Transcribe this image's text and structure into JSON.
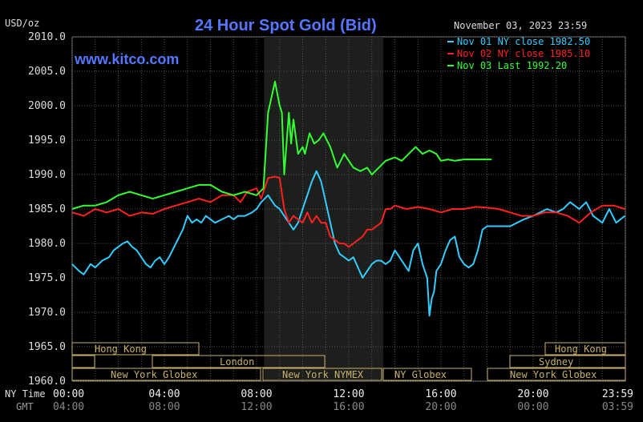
{
  "chart_data": {
    "type": "line",
    "title": "24 Hour Spot Gold (Bid)",
    "ylabel": "USD/oz",
    "watermark": "www.kitco.com",
    "timestamp": "November 03, 2023 23:59",
    "ylim": [
      1960,
      2010
    ],
    "y_ticks": [
      "2010.0",
      "2005.0",
      "2000.0",
      "1995.0",
      "1990.0",
      "1985.0",
      "1980.0",
      "1975.0",
      "1970.0",
      "1965.0",
      "1960.0"
    ],
    "x_ticks_ny": [
      "00:00",
      "04:00",
      "08:00",
      "12:00",
      "16:00",
      "20:00",
      "23:59"
    ],
    "x_ticks_gmt": [
      "04:00",
      "08:00",
      "12:00",
      "16:00",
      "20:00",
      "00:00",
      "03:59"
    ],
    "x_axis_labels": {
      "ny": "NY Time",
      "gmt": "GMT"
    },
    "grid": true,
    "shaded_hours": [
      8.33,
      13.5
    ],
    "series": [
      {
        "name": "Nov 01 NY close 1982.50",
        "color": "#33ccff",
        "x": [
          0,
          0.3,
          0.5,
          0.8,
          1.0,
          1.3,
          1.6,
          1.8,
          2.0,
          2.2,
          2.4,
          2.6,
          2.8,
          3.0,
          3.2,
          3.4,
          3.6,
          3.8,
          4.0,
          4.2,
          4.5,
          4.8,
          5.0,
          5.2,
          5.4,
          5.6,
          5.8,
          6.0,
          6.2,
          6.5,
          6.8,
          7.0,
          7.2,
          7.5,
          7.8,
          8.0,
          8.2,
          8.5,
          8.8,
          9.0,
          9.2,
          9.4,
          9.6,
          9.8,
          10.0,
          10.2,
          10.4,
          10.6,
          10.8,
          11.0,
          11.2,
          11.4,
          11.6,
          11.8,
          12.0,
          12.2,
          12.4,
          12.6,
          12.8,
          13.0,
          13.2,
          13.4,
          13.6,
          13.8,
          14.0,
          14.2,
          14.4,
          14.6,
          14.8,
          15.0,
          15.2,
          15.4,
          15.5,
          15.6,
          15.7,
          15.8,
          16.0,
          16.2,
          16.4,
          16.6,
          16.8,
          17.0,
          17.2,
          17.4,
          17.6,
          17.8,
          18.0,
          18.3,
          18.6,
          19.0,
          19.3,
          19.6,
          20.0,
          20.3,
          20.6,
          21.0,
          21.3,
          21.6,
          22.0,
          22.3,
          22.6,
          23.0,
          23.3,
          23.6,
          23.98
        ],
        "values": [
          1977,
          1976,
          1975.5,
          1977,
          1976.5,
          1977.5,
          1978,
          1979,
          1979.5,
          1980,
          1980.3,
          1979.5,
          1979,
          1978,
          1977,
          1976.5,
          1977.5,
          1978,
          1977,
          1978,
          1980,
          1982,
          1984,
          1983,
          1983.5,
          1983,
          1984,
          1983.5,
          1983,
          1983.5,
          1984,
          1983.5,
          1984,
          1984,
          1984.5,
          1985,
          1986,
          1987,
          1985.5,
          1985,
          1984,
          1983,
          1982,
          1983,
          1985,
          1987,
          1989,
          1990.5,
          1989,
          1986,
          1983,
          1980,
          1978.5,
          1978,
          1977.5,
          1978,
          1976.5,
          1975,
          1976,
          1977,
          1977.5,
          1977.5,
          1977,
          1977.5,
          1979,
          1978,
          1977,
          1976,
          1979,
          1980,
          1977,
          1975,
          1969.5,
          1972,
          1973,
          1976,
          1977,
          1979,
          1980.5,
          1981,
          1978,
          1977,
          1976.5,
          1977,
          1979,
          1982,
          1982.5,
          1982.5,
          1982.5,
          1982.5,
          1983,
          1983.5,
          1984,
          1984.5,
          1985,
          1984.5,
          1985,
          1986,
          1985,
          1986,
          1984,
          1983,
          1985,
          1983,
          1984
        ]
      },
      {
        "name": "Nov 02 NY close 1985.10",
        "color": "#ff2020",
        "x": [
          0,
          0.5,
          1.0,
          1.5,
          2.0,
          2.5,
          3.0,
          3.5,
          4.0,
          4.5,
          5.0,
          5.5,
          6.0,
          6.5,
          7.0,
          7.3,
          7.6,
          8.0,
          8.2,
          8.5,
          8.8,
          9.0,
          9.2,
          9.4,
          9.6,
          9.8,
          10.0,
          10.2,
          10.4,
          10.6,
          10.8,
          11.0,
          11.2,
          11.4,
          11.6,
          11.8,
          12.0,
          12.2,
          12.4,
          12.6,
          12.8,
          13.0,
          13.2,
          13.4,
          13.6,
          13.8,
          14.0,
          14.5,
          15.0,
          15.5,
          16.0,
          16.5,
          17.0,
          17.5,
          18.0,
          18.5,
          19.0,
          19.5,
          20.0,
          20.5,
          21.0,
          21.5,
          22.0,
          22.5,
          23.0,
          23.5,
          23.98
        ],
        "values": [
          1984.5,
          1984,
          1985,
          1984.5,
          1985,
          1984,
          1984.5,
          1984.3,
          1985,
          1985.5,
          1986,
          1986.5,
          1986,
          1987,
          1987,
          1986,
          1987.5,
          1988,
          1986.5,
          1989.5,
          1989.7,
          1989.5,
          1985,
          1983,
          1984,
          1983.5,
          1983,
          1984.5,
          1983,
          1984,
          1983,
          1983,
          1981,
          1980.5,
          1980,
          1980,
          1979.5,
          1980,
          1980.5,
          1981,
          1982,
          1982,
          1982.5,
          1983,
          1985,
          1985,
          1985.5,
          1985,
          1985.3,
          1985,
          1984.5,
          1985,
          1985,
          1985.3,
          1985.2,
          1985,
          1984.5,
          1984,
          1984,
          1984.5,
          1984.5,
          1984,
          1983,
          1984.5,
          1985.5,
          1985.5,
          1985
        ]
      },
      {
        "name": "Nov 03 Last 1992.20",
        "color": "#33ff33",
        "x": [
          0,
          0.5,
          1.0,
          1.5,
          2.0,
          2.5,
          3.0,
          3.5,
          4.0,
          4.5,
          5.0,
          5.5,
          6.0,
          6.5,
          7.0,
          7.5,
          8.0,
          8.3,
          8.5,
          8.8,
          9.0,
          9.1,
          9.2,
          9.4,
          9.5,
          9.6,
          9.8,
          10.0,
          10.1,
          10.3,
          10.5,
          10.7,
          10.9,
          11.2,
          11.5,
          11.8,
          12.0,
          12.2,
          12.5,
          12.8,
          13.0,
          13.3,
          13.6,
          14.0,
          14.3,
          14.6,
          14.9,
          15.2,
          15.5,
          15.8,
          16.0,
          16.3,
          16.6,
          17.0,
          17.5,
          18.0,
          18.2
        ],
        "values": [
          1985,
          1985.5,
          1985.5,
          1986,
          1987,
          1987.5,
          1987,
          1986.5,
          1987,
          1987.5,
          1988,
          1988.5,
          1988.5,
          1987.5,
          1987,
          1987.5,
          1987,
          1988,
          1999,
          2003.5,
          2000,
          1999,
          1990,
          1999,
          1994.5,
          1998,
          1993,
          1994,
          1993,
          1996,
          1994.5,
          1995,
          1996,
          1994,
          1991,
          1993,
          1992,
          1991,
          1990.5,
          1991,
          1990,
          1991,
          1992,
          1992.5,
          1992,
          1993,
          1994,
          1993,
          1993.5,
          1993,
          1992,
          1992.2,
          1992,
          1992.2,
          1992.2,
          1992.2,
          1992.2
        ]
      }
    ]
  },
  "sessions": {
    "hong_kong": "Hong Kong",
    "london": "London",
    "ny_globex": "New York Globex",
    "ny_nymex": "New York NYMEX",
    "ny_globex_short": "NY Globex",
    "hong_kong_2": "Hong Kong",
    "sydney": "Sydney",
    "ny_globex_2": "New York Globex"
  }
}
